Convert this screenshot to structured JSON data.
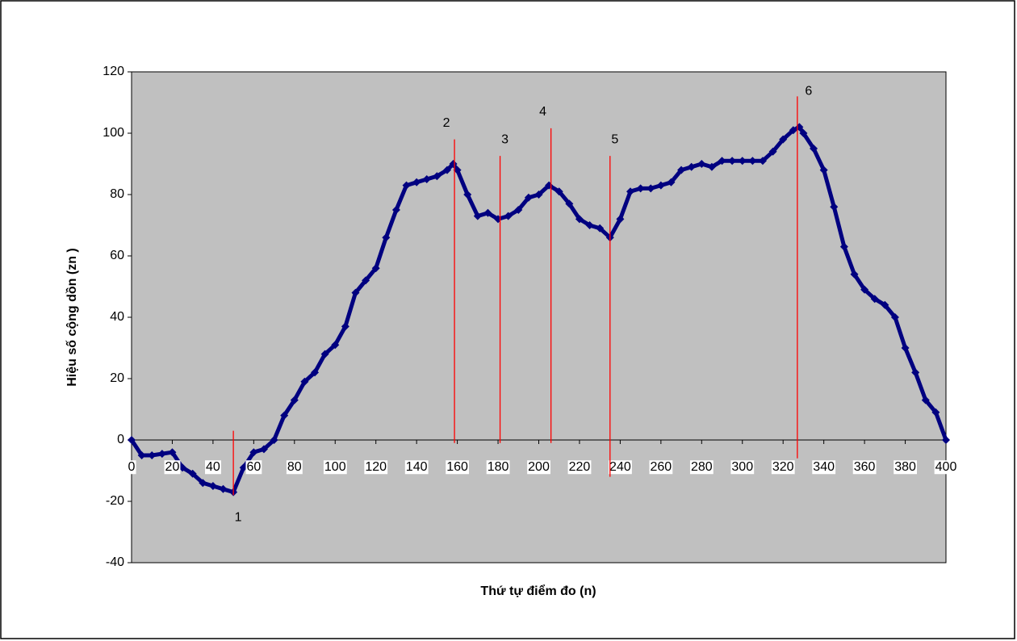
{
  "chart_data": {
    "type": "scatter",
    "xlabel": "Thứ tự điểm đo (n)",
    "ylabel": "Hiệu số cộng dồn  (zn )",
    "x": [
      0,
      5,
      10,
      15,
      20,
      25,
      30,
      35,
      40,
      45,
      50,
      55,
      60,
      65,
      70,
      75,
      80,
      85,
      90,
      95,
      100,
      105,
      110,
      115,
      120,
      125,
      130,
      135,
      140,
      145,
      150,
      155,
      158,
      160,
      165,
      170,
      175,
      180,
      185,
      190,
      195,
      200,
      205,
      210,
      215,
      220,
      225,
      230,
      235,
      240,
      245,
      250,
      255,
      260,
      265,
      270,
      275,
      280,
      285,
      290,
      295,
      300,
      305,
      310,
      315,
      320,
      325,
      328,
      330,
      335,
      340,
      345,
      350,
      355,
      360,
      365,
      370,
      375,
      380,
      385,
      390,
      395,
      400
    ],
    "series": [
      {
        "color": "#000080",
        "values": [
          0,
          -5,
          -5,
          -4.5,
          -4,
          -9,
          -11,
          -14,
          -15,
          -16,
          -17,
          -9,
          -4,
          -3,
          0,
          8,
          13,
          19,
          22,
          28,
          31,
          37,
          48,
          52,
          56,
          66,
          75,
          83,
          84,
          85,
          86,
          88,
          90,
          88,
          80,
          73,
          74,
          72,
          73,
          75,
          79,
          80,
          83,
          81,
          77,
          72,
          70,
          69,
          66,
          72,
          81,
          82,
          82,
          83,
          84,
          88,
          89,
          90,
          89,
          91,
          91,
          91,
          91,
          91,
          94,
          98,
          101,
          102,
          100,
          95,
          88,
          76,
          63,
          54,
          49,
          46,
          44,
          40,
          30,
          22,
          13,
          9,
          0
        ]
      }
    ],
    "xlim": [
      0,
      400
    ],
    "xticks": [
      0,
      20,
      40,
      60,
      80,
      100,
      120,
      140,
      160,
      180,
      200,
      220,
      240,
      260,
      280,
      300,
      320,
      340,
      360,
      380,
      400
    ],
    "ylim": [
      -40,
      120
    ],
    "yticks": [
      -40,
      -20,
      0,
      20,
      40,
      60,
      80,
      100,
      120
    ],
    "annotations": [
      {
        "label": "1",
        "x": 50,
        "y": [
          -18,
          3
        ]
      },
      {
        "label": "2",
        "x": 158.6,
        "y": [
          -1,
          98
        ]
      },
      {
        "label": "3",
        "x": 181,
        "y": [
          -1,
          92.6
        ]
      },
      {
        "label": "4",
        "x": 206,
        "y": [
          -1,
          101.6
        ]
      },
      {
        "label": "5",
        "x": 235,
        "y": [
          -12,
          92.6
        ]
      },
      {
        "label": "6",
        "x": 327,
        "y": [
          -6,
          112
        ]
      }
    ]
  }
}
